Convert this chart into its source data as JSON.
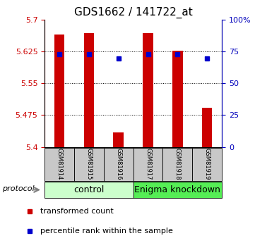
{
  "title": "GDS1662 / 141722_at",
  "samples": [
    "GSM81914",
    "GSM81915",
    "GSM81916",
    "GSM81917",
    "GSM81918",
    "GSM81919"
  ],
  "bar_values": [
    5.665,
    5.668,
    5.435,
    5.668,
    5.627,
    5.492
  ],
  "blue_values": [
    5.618,
    5.618,
    5.608,
    5.618,
    5.618,
    5.608
  ],
  "bar_bottom": 5.4,
  "ylim": [
    5.4,
    5.7
  ],
  "yticks_left": [
    5.4,
    5.475,
    5.55,
    5.625,
    5.7
  ],
  "yticks_right": [
    0,
    25,
    50,
    75,
    100
  ],
  "bar_color": "#cc0000",
  "blue_color": "#0000cc",
  "bar_width": 0.35,
  "protocol_label": "protocol",
  "legend_items": [
    {
      "label": "transformed count",
      "color": "#cc0000"
    },
    {
      "label": "percentile rank within the sample",
      "color": "#0000cc"
    }
  ],
  "left_axis_color": "#cc0000",
  "right_axis_color": "#0000bb",
  "title_fontsize": 11,
  "tick_fontsize": 8,
  "sample_fontsize": 6,
  "group_label_fontsize": 9,
  "legend_fontsize": 8,
  "control_color": "#ccffcc",
  "knockdown_color": "#55ee55"
}
